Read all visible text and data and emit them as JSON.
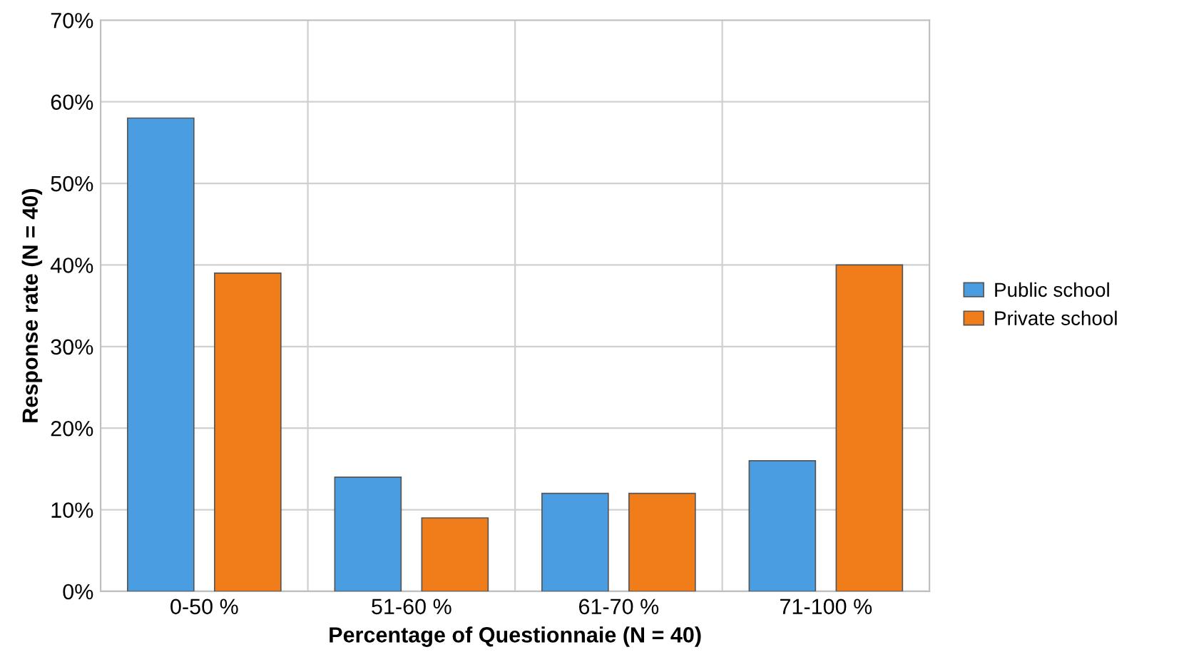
{
  "chart_data": {
    "type": "bar",
    "xlabel": "Percentage of Questionnaie (N = 40)",
    "ylabel": "Response rate (N = 40)",
    "categories": [
      "0-50 %",
      "51-60 %",
      "61-70 %",
      "71-100 %"
    ],
    "series": [
      {
        "name": "Public school",
        "color": "#4a9de0",
        "values": [
          58,
          14,
          12,
          16
        ]
      },
      {
        "name": "Private school",
        "color": "#f07d1a",
        "values": [
          39,
          9,
          12,
          40
        ]
      }
    ],
    "ylim": [
      0,
      70
    ],
    "yticks": [
      {
        "value": 0,
        "label": "0%"
      },
      {
        "value": 10,
        "label": "10%"
      },
      {
        "value": 20,
        "label": "20%"
      },
      {
        "value": 30,
        "label": "30%"
      },
      {
        "value": 40,
        "label": "40%"
      },
      {
        "value": 50,
        "label": "50%"
      },
      {
        "value": 60,
        "label": "60%"
      },
      {
        "value": 70,
        "label": "70%"
      }
    ],
    "grid": true,
    "legend": "right"
  }
}
